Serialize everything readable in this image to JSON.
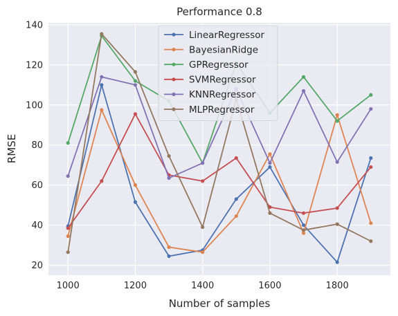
{
  "chart_data": {
    "type": "line",
    "title": "Performance 0.8",
    "xlabel": "Number of samples",
    "ylabel": "RMSE",
    "x": [
      1000,
      1100,
      1200,
      1300,
      1400,
      1500,
      1600,
      1700,
      1800,
      1900
    ],
    "xlim": [
      942,
      1958
    ],
    "ylim": [
      15,
      141
    ],
    "xticks": [
      1000,
      1200,
      1400,
      1600,
      1800
    ],
    "yticks": [
      20,
      40,
      60,
      80,
      100,
      120,
      140
    ],
    "grid": true,
    "legend_position": "top-center",
    "background": "#eaeaf2",
    "series": [
      {
        "name": "LinearRegressor",
        "color": "#4c72b0",
        "values": [
          39.5,
          110.0,
          51.5,
          24.5,
          27.5,
          53.0,
          69.0,
          40.0,
          21.5,
          73.5
        ]
      },
      {
        "name": "BayesianRidge",
        "color": "#dd8452",
        "values": [
          34.5,
          97.5,
          60.0,
          29.0,
          26.5,
          44.5,
          75.5,
          36.0,
          95.0,
          41.0
        ]
      },
      {
        "name": "GPRegressor",
        "color": "#55a868",
        "values": [
          81.0,
          134.5,
          112.0,
          102.0,
          71.0,
          121.0,
          96.0,
          114.0,
          92.0,
          105.0
        ]
      },
      {
        "name": "SVMRegressor",
        "color": "#c44e52",
        "values": [
          38.5,
          62.0,
          95.5,
          65.0,
          62.0,
          73.5,
          49.0,
          46.0,
          48.5,
          69.0
        ]
      },
      {
        "name": "KNNRegressor",
        "color": "#8172b3",
        "values": [
          64.5,
          114.0,
          110.0,
          63.5,
          71.0,
          108.0,
          71.0,
          107.0,
          71.5,
          98.0
        ]
      },
      {
        "name": "MLPRegressor",
        "color": "#937860",
        "values": [
          26.5,
          135.5,
          116.5,
          74.5,
          39.0,
          103.0,
          46.0,
          37.5,
          40.5,
          32.0
        ]
      }
    ]
  }
}
